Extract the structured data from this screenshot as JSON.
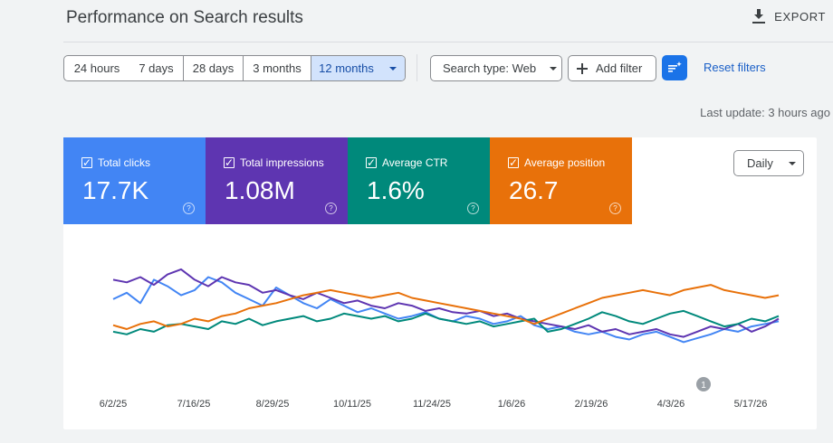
{
  "header": {
    "title": "Performance on Search results",
    "export_label": "EXPORT"
  },
  "date_range": {
    "options": [
      "24 hours",
      "7 days",
      "28 days",
      "3 months",
      "12 months"
    ],
    "selected": "12 months"
  },
  "filters": {
    "search_type": "Search type: Web",
    "add_filter": "Add filter",
    "reset": "Reset filters"
  },
  "last_update": "Last update: 3 hours ago",
  "metrics": [
    {
      "label": "Total clicks",
      "value": "17.7K",
      "color": "#4285f4",
      "checked": true
    },
    {
      "label": "Total impressions",
      "value": "1.08M",
      "color": "#5e35b1",
      "checked": true
    },
    {
      "label": "Average CTR",
      "value": "1.6%",
      "color": "#00897b",
      "checked": true
    },
    {
      "label": "Average position",
      "value": "26.7",
      "color": "#e8710a",
      "checked": true
    }
  ],
  "granularity": "Daily",
  "annotation_badge": "1",
  "chart_data": {
    "type": "line",
    "x_tick_labels": [
      "6/2/25",
      "7/16/25",
      "8/29/25",
      "10/11/25",
      "11/24/25",
      "1/6/26",
      "2/19/26",
      "4/3/26",
      "5/17/26"
    ],
    "series": [
      {
        "name": "Total clicks",
        "color": "#4285f4",
        "values": [
          55,
          60,
          52,
          70,
          65,
          58,
          62,
          72,
          68,
          60,
          55,
          50,
          64,
          58,
          52,
          48,
          55,
          50,
          45,
          48,
          44,
          40,
          42,
          45,
          40,
          38,
          42,
          40,
          36,
          38,
          42,
          35,
          32,
          34,
          30,
          28,
          30,
          26,
          24,
          28,
          30,
          26,
          22,
          25,
          28,
          32,
          30,
          34,
          36,
          38
        ]
      },
      {
        "name": "Total impressions",
        "color": "#5e35b1",
        "values": [
          70,
          68,
          72,
          66,
          74,
          78,
          70,
          65,
          72,
          68,
          66,
          60,
          62,
          58,
          55,
          60,
          56,
          52,
          54,
          50,
          48,
          52,
          50,
          46,
          48,
          45,
          44,
          46,
          42,
          44,
          40,
          38,
          36,
          34,
          32,
          35,
          30,
          32,
          28,
          30,
          32,
          28,
          26,
          30,
          34,
          32,
          36,
          30,
          34,
          40
        ]
      },
      {
        "name": "Average CTR",
        "color": "#00897b",
        "values": [
          30,
          28,
          32,
          30,
          35,
          36,
          34,
          32,
          38,
          36,
          40,
          35,
          38,
          40,
          42,
          38,
          40,
          44,
          42,
          40,
          42,
          38,
          40,
          44,
          40,
          38,
          36,
          38,
          34,
          36,
          38,
          40,
          30,
          32,
          36,
          40,
          45,
          42,
          38,
          36,
          40,
          44,
          46,
          42,
          38,
          34,
          36,
          40,
          38,
          42
        ]
      },
      {
        "name": "Average position",
        "color": "#e8710a",
        "values": [
          35,
          32,
          36,
          38,
          34,
          36,
          40,
          38,
          42,
          44,
          48,
          50,
          52,
          55,
          58,
          60,
          62,
          60,
          58,
          56,
          58,
          60,
          56,
          54,
          52,
          50,
          48,
          46,
          44,
          42,
          40,
          36,
          40,
          44,
          48,
          52,
          56,
          58,
          60,
          62,
          60,
          58,
          62,
          64,
          66,
          62,
          60,
          58,
          56,
          58
        ]
      }
    ]
  }
}
